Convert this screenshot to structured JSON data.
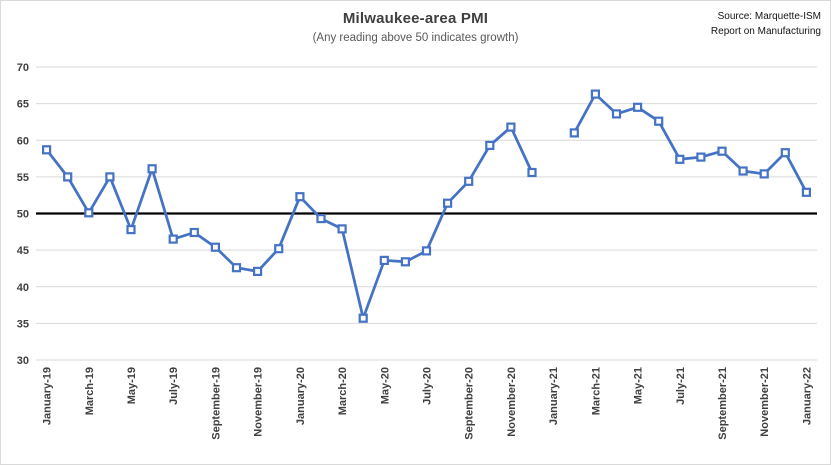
{
  "header": {
    "title": "Milwaukee-area PMI",
    "subtitle": "(Any reading above 50 indicates growth)",
    "source_line1": "Source: Marquette-ISM",
    "source_line2": "Report on Manufacturing"
  },
  "chart_data": {
    "type": "line",
    "title": "Milwaukee-area PMI",
    "subtitle": "(Any reading above 50 indicates growth)",
    "source": "Source: Marquette-ISM Report on Manufacturing",
    "categories": [
      "January-19",
      "February-19",
      "March-19",
      "April-19",
      "May-19",
      "June-19",
      "July-19",
      "August-19",
      "September-19",
      "October-19",
      "November-19",
      "December-19",
      "January-20",
      "February-20",
      "March-20",
      "April-20",
      "May-20",
      "June-20",
      "July-20",
      "August-20",
      "September-20",
      "October-20",
      "November-20",
      "December-20",
      "January-21",
      "February-21",
      "March-21",
      "April-21",
      "May-21",
      "June-21",
      "July-21",
      "August-21",
      "September-21",
      "October-21",
      "November-21",
      "December-21",
      "January-22"
    ],
    "x_tick_labels": [
      "January-19",
      "March-19",
      "May-19",
      "July-19",
      "September-19",
      "November-19",
      "January-20",
      "March-20",
      "May-20",
      "July-20",
      "September-20",
      "November-20",
      "January-21",
      "March-21",
      "May-21",
      "July-21",
      "September-21",
      "November-21",
      "January-22"
    ],
    "values": [
      58.7,
      55.0,
      50.1,
      55.0,
      47.8,
      56.1,
      46.5,
      47.4,
      45.4,
      42.6,
      42.1,
      45.2,
      52.3,
      49.3,
      47.9,
      35.7,
      43.6,
      43.4,
      44.9,
      51.4,
      54.4,
      59.3,
      61.8,
      55.6,
      null,
      61.0,
      66.3,
      63.6,
      64.5,
      62.6,
      57.4,
      57.7,
      58.5,
      55.8,
      55.4,
      58.3,
      52.9
    ],
    "reference_line": {
      "value": 50,
      "color": "#000000"
    },
    "ylim": [
      30,
      70
    ],
    "yticks": [
      30,
      35,
      40,
      45,
      50,
      55,
      60,
      65,
      70
    ],
    "grid": true,
    "legend": "none",
    "marker": "open-square",
    "colors": {
      "series": "#4472C4",
      "marker_fill": "#ffffff",
      "grid": "#d9d9d9",
      "axis_text": "#404040"
    }
  }
}
